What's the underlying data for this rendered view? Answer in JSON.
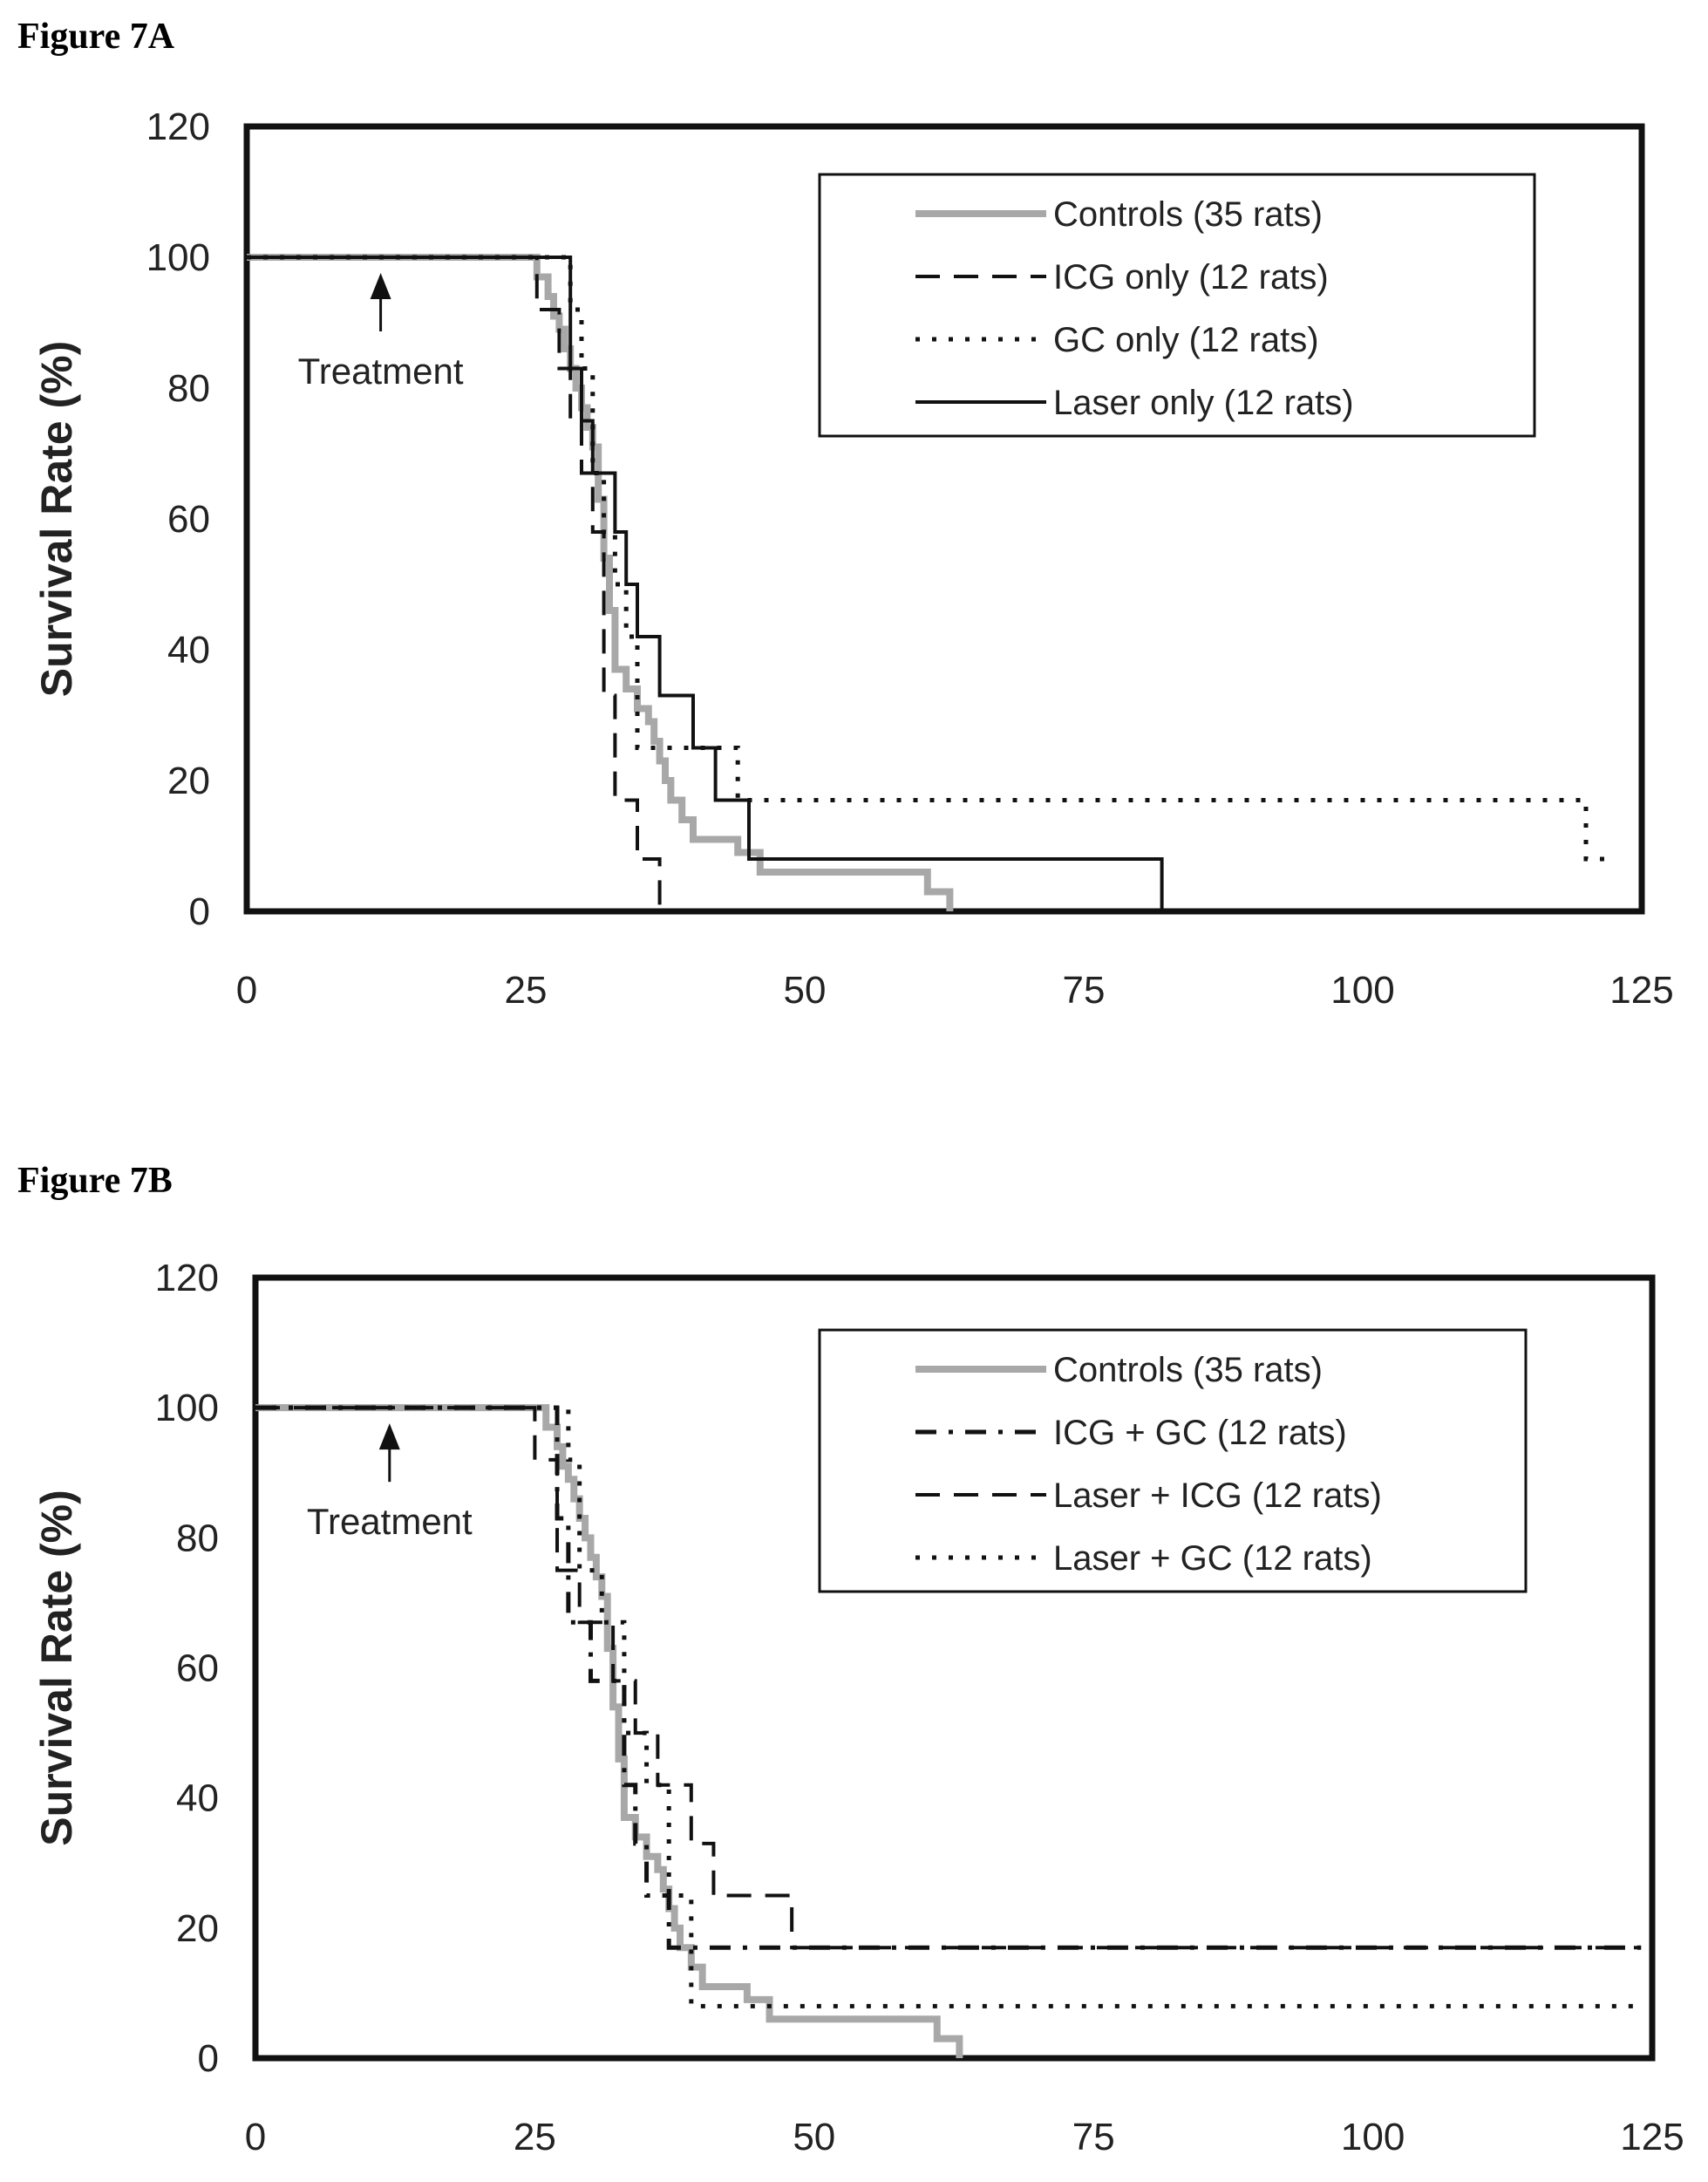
{
  "figures": {
    "a_label": "Figure 7A",
    "b_label": "Figure 7B"
  },
  "chart_data": [
    {
      "type": "line",
      "step": true,
      "id": "a",
      "xlabel": "",
      "ylabel": "Survival Rate (%)",
      "xlim": [
        0,
        125
      ],
      "ylim": [
        0,
        120
      ],
      "xticks": [
        0,
        25,
        50,
        75,
        100,
        125
      ],
      "yticks": [
        0,
        20,
        40,
        60,
        80,
        100,
        120
      ],
      "legend_position": "top-right",
      "annotation": {
        "text": "Treatment",
        "x": 12
      },
      "series": [
        {
          "name": "Controls (35 rats)",
          "style": "controls",
          "x": [
            0,
            26,
            27,
            27.5,
            28,
            28.5,
            29,
            29.5,
            30,
            30.5,
            31,
            31.5,
            32,
            32.5,
            33,
            34,
            35,
            36,
            36.5,
            37,
            37.5,
            38,
            39,
            40,
            41,
            42,
            43,
            44,
            45,
            46,
            60,
            61,
            63
          ],
          "y": [
            100,
            97,
            94,
            91,
            89,
            86,
            83,
            80,
            77,
            74,
            71,
            63,
            54,
            46,
            37,
            34,
            31,
            29,
            26,
            23,
            20,
            17,
            14,
            11,
            11,
            11,
            11,
            9,
            9,
            6,
            6,
            3,
            0
          ]
        },
        {
          "name": "ICG only (12 rats)",
          "style": "dashed",
          "x": [
            0,
            26,
            28,
            29,
            30,
            31,
            32,
            33,
            35,
            37
          ],
          "y": [
            100,
            92,
            83,
            75,
            67,
            58,
            33,
            17,
            8,
            0
          ]
        },
        {
          "name": "GC only (12 rats)",
          "style": "dotted",
          "x": [
            0,
            29,
            30,
            31,
            32,
            33,
            34,
            35,
            44,
            120,
            122
          ],
          "y": [
            100,
            92,
            83,
            67,
            58,
            50,
            42,
            25,
            17,
            8,
            8
          ]
        },
        {
          "name": "Laser only (12 rats)",
          "style": "solid",
          "x": [
            0,
            29,
            30,
            31,
            33,
            34,
            35,
            37,
            40,
            42,
            45,
            82
          ],
          "y": [
            100,
            83,
            75,
            67,
            58,
            50,
            42,
            33,
            25,
            17,
            8,
            0
          ]
        }
      ]
    },
    {
      "type": "line",
      "step": true,
      "id": "b",
      "xlabel": "",
      "ylabel": "Survival Rate (%)",
      "xlim": [
        0,
        125
      ],
      "ylim": [
        0,
        120
      ],
      "xticks": [
        0,
        25,
        50,
        75,
        100,
        125
      ],
      "yticks": [
        0,
        20,
        40,
        60,
        80,
        100,
        120
      ],
      "legend_position": "top-right",
      "annotation": {
        "text": "Treatment",
        "x": 12
      },
      "series": [
        {
          "name": "Controls (35 rats)",
          "style": "controls",
          "x": [
            0,
            26,
            27,
            27.5,
            28,
            28.5,
            29,
            29.5,
            30,
            30.5,
            31,
            31.5,
            32,
            32.5,
            33,
            34,
            35,
            36,
            36.5,
            37,
            37.5,
            38,
            39,
            40,
            41,
            42,
            43,
            44,
            45,
            46,
            60,
            61,
            63
          ],
          "y": [
            100,
            97,
            94,
            91,
            89,
            86,
            83,
            80,
            77,
            74,
            71,
            63,
            54,
            46,
            37,
            34,
            31,
            29,
            26,
            23,
            20,
            17,
            14,
            11,
            11,
            11,
            11,
            9,
            9,
            6,
            6,
            3,
            0
          ]
        },
        {
          "name": "ICG + GC (12 rats)",
          "style": "dashdot",
          "x": [
            0,
            27,
            28,
            30,
            33,
            34,
            35,
            37,
            39,
            48,
            124
          ],
          "y": [
            100,
            83,
            67,
            58,
            42,
            33,
            25,
            17,
            17,
            17,
            17
          ]
        },
        {
          "name": "Laser + ICG (12 rats)",
          "style": "dashed",
          "x": [
            0,
            25,
            27,
            29,
            32,
            34,
            36,
            39,
            41,
            48,
            124
          ],
          "y": [
            100,
            92,
            75,
            67,
            58,
            50,
            42,
            33,
            25,
            17,
            17
          ]
        },
        {
          "name": "Laser + GC (12 rats)",
          "style": "dotted",
          "x": [
            0,
            28,
            29,
            31,
            33,
            35,
            37,
            39,
            44,
            124
          ],
          "y": [
            100,
            92,
            75,
            67,
            50,
            42,
            25,
            8,
            8,
            8
          ]
        }
      ]
    }
  ]
}
